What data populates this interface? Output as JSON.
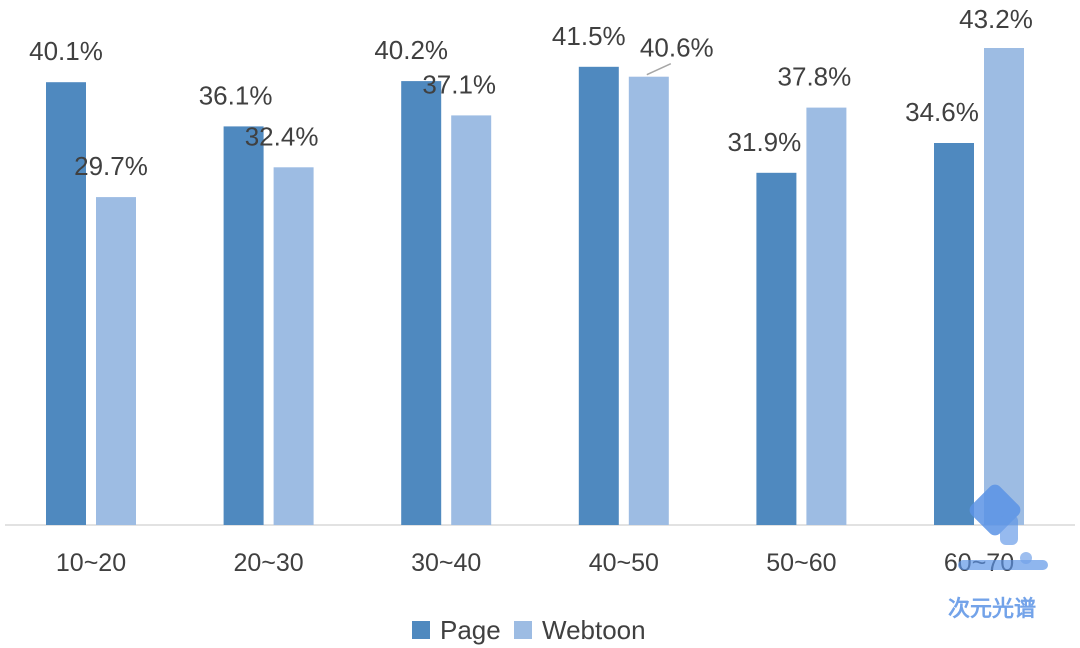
{
  "chart_data": {
    "type": "bar",
    "categories": [
      "10~20",
      "20~30",
      "30~40",
      "40~50",
      "50~60",
      "60~70"
    ],
    "series": [
      {
        "name": "Page",
        "color": "#4f89bf",
        "values": [
          40.1,
          36.1,
          40.2,
          41.5,
          31.9,
          34.6
        ],
        "labels": [
          "40.1%",
          "36.1%",
          "40.2%",
          "41.5%",
          "31.9%",
          "34.6%"
        ]
      },
      {
        "name": "Webtoon",
        "color": "#9dbce3",
        "values": [
          29.7,
          32.4,
          37.1,
          40.6,
          37.8,
          43.2
        ],
        "labels": [
          "29.7%",
          "32.4%",
          "37.1%",
          "40.6%",
          "37.8%",
          "43.2%"
        ]
      }
    ],
    "ylim": [
      0,
      43.2
    ],
    "grid": false,
    "legend": "bottom-center"
  },
  "watermark": {
    "text": "次元光谱",
    "color": "#5b93e6"
  }
}
